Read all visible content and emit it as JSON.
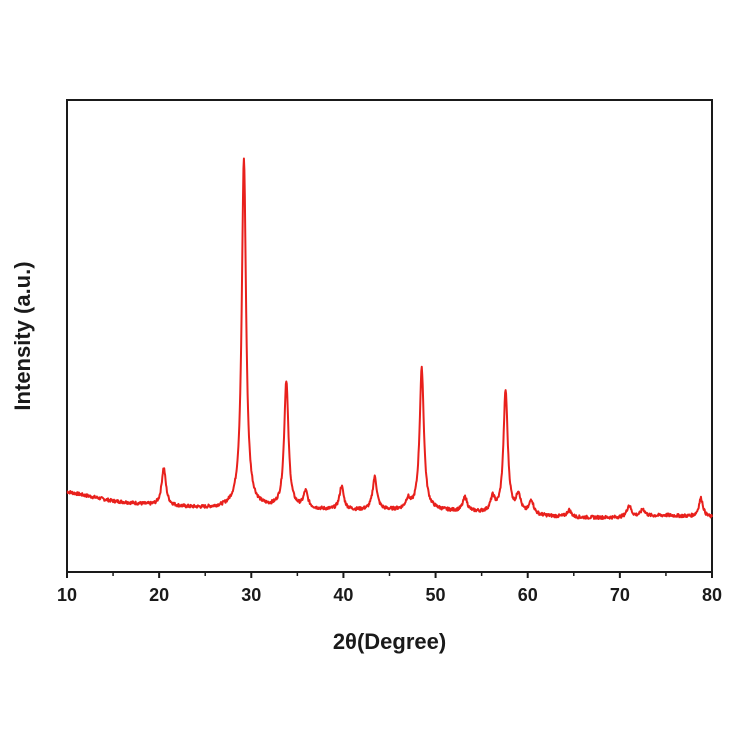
{
  "chart_data": {
    "type": "line",
    "xlabel": "2θ(Degree)",
    "ylabel": "Intensity (a.u.)",
    "xlim": [
      10,
      80
    ],
    "ylim": [
      0,
      100
    ],
    "x_ticks": [
      10,
      20,
      30,
      40,
      50,
      60,
      70,
      80
    ],
    "x_tick_labels": [
      "10",
      "20",
      "30",
      "40",
      "50",
      "60",
      "70",
      "80"
    ],
    "y_ticks_shown": false,
    "grid": false,
    "legend": "none",
    "series": [
      {
        "color": "#e8201c",
        "baseline": [
          [
            10,
            17
          ],
          [
            15,
            15
          ],
          [
            20,
            14
          ],
          [
            25,
            13.5
          ],
          [
            30,
            13.5
          ],
          [
            40,
            13
          ],
          [
            50,
            13
          ],
          [
            60,
            12
          ],
          [
            65,
            11.5
          ],
          [
            70,
            11.5
          ],
          [
            75,
            12
          ],
          [
            80,
            11.5
          ]
        ],
        "peaks": [
          {
            "x": 20.5,
            "height": 8
          },
          {
            "x": 29.2,
            "height": 74
          },
          {
            "x": 33.8,
            "height": 27
          },
          {
            "x": 35.9,
            "height": 3.5
          },
          {
            "x": 39.8,
            "height": 5
          },
          {
            "x": 43.4,
            "height": 7
          },
          {
            "x": 47.0,
            "height": 2
          },
          {
            "x": 48.5,
            "height": 30
          },
          {
            "x": 53.2,
            "height": 3
          },
          {
            "x": 56.2,
            "height": 3
          },
          {
            "x": 57.6,
            "height": 26
          },
          {
            "x": 59.0,
            "height": 4
          },
          {
            "x": 60.4,
            "height": 3
          },
          {
            "x": 64.5,
            "height": 1.5
          },
          {
            "x": 71.0,
            "height": 2.5
          },
          {
            "x": 72.5,
            "height": 1.5
          },
          {
            "x": 78.8,
            "height": 4
          }
        ]
      }
    ]
  }
}
